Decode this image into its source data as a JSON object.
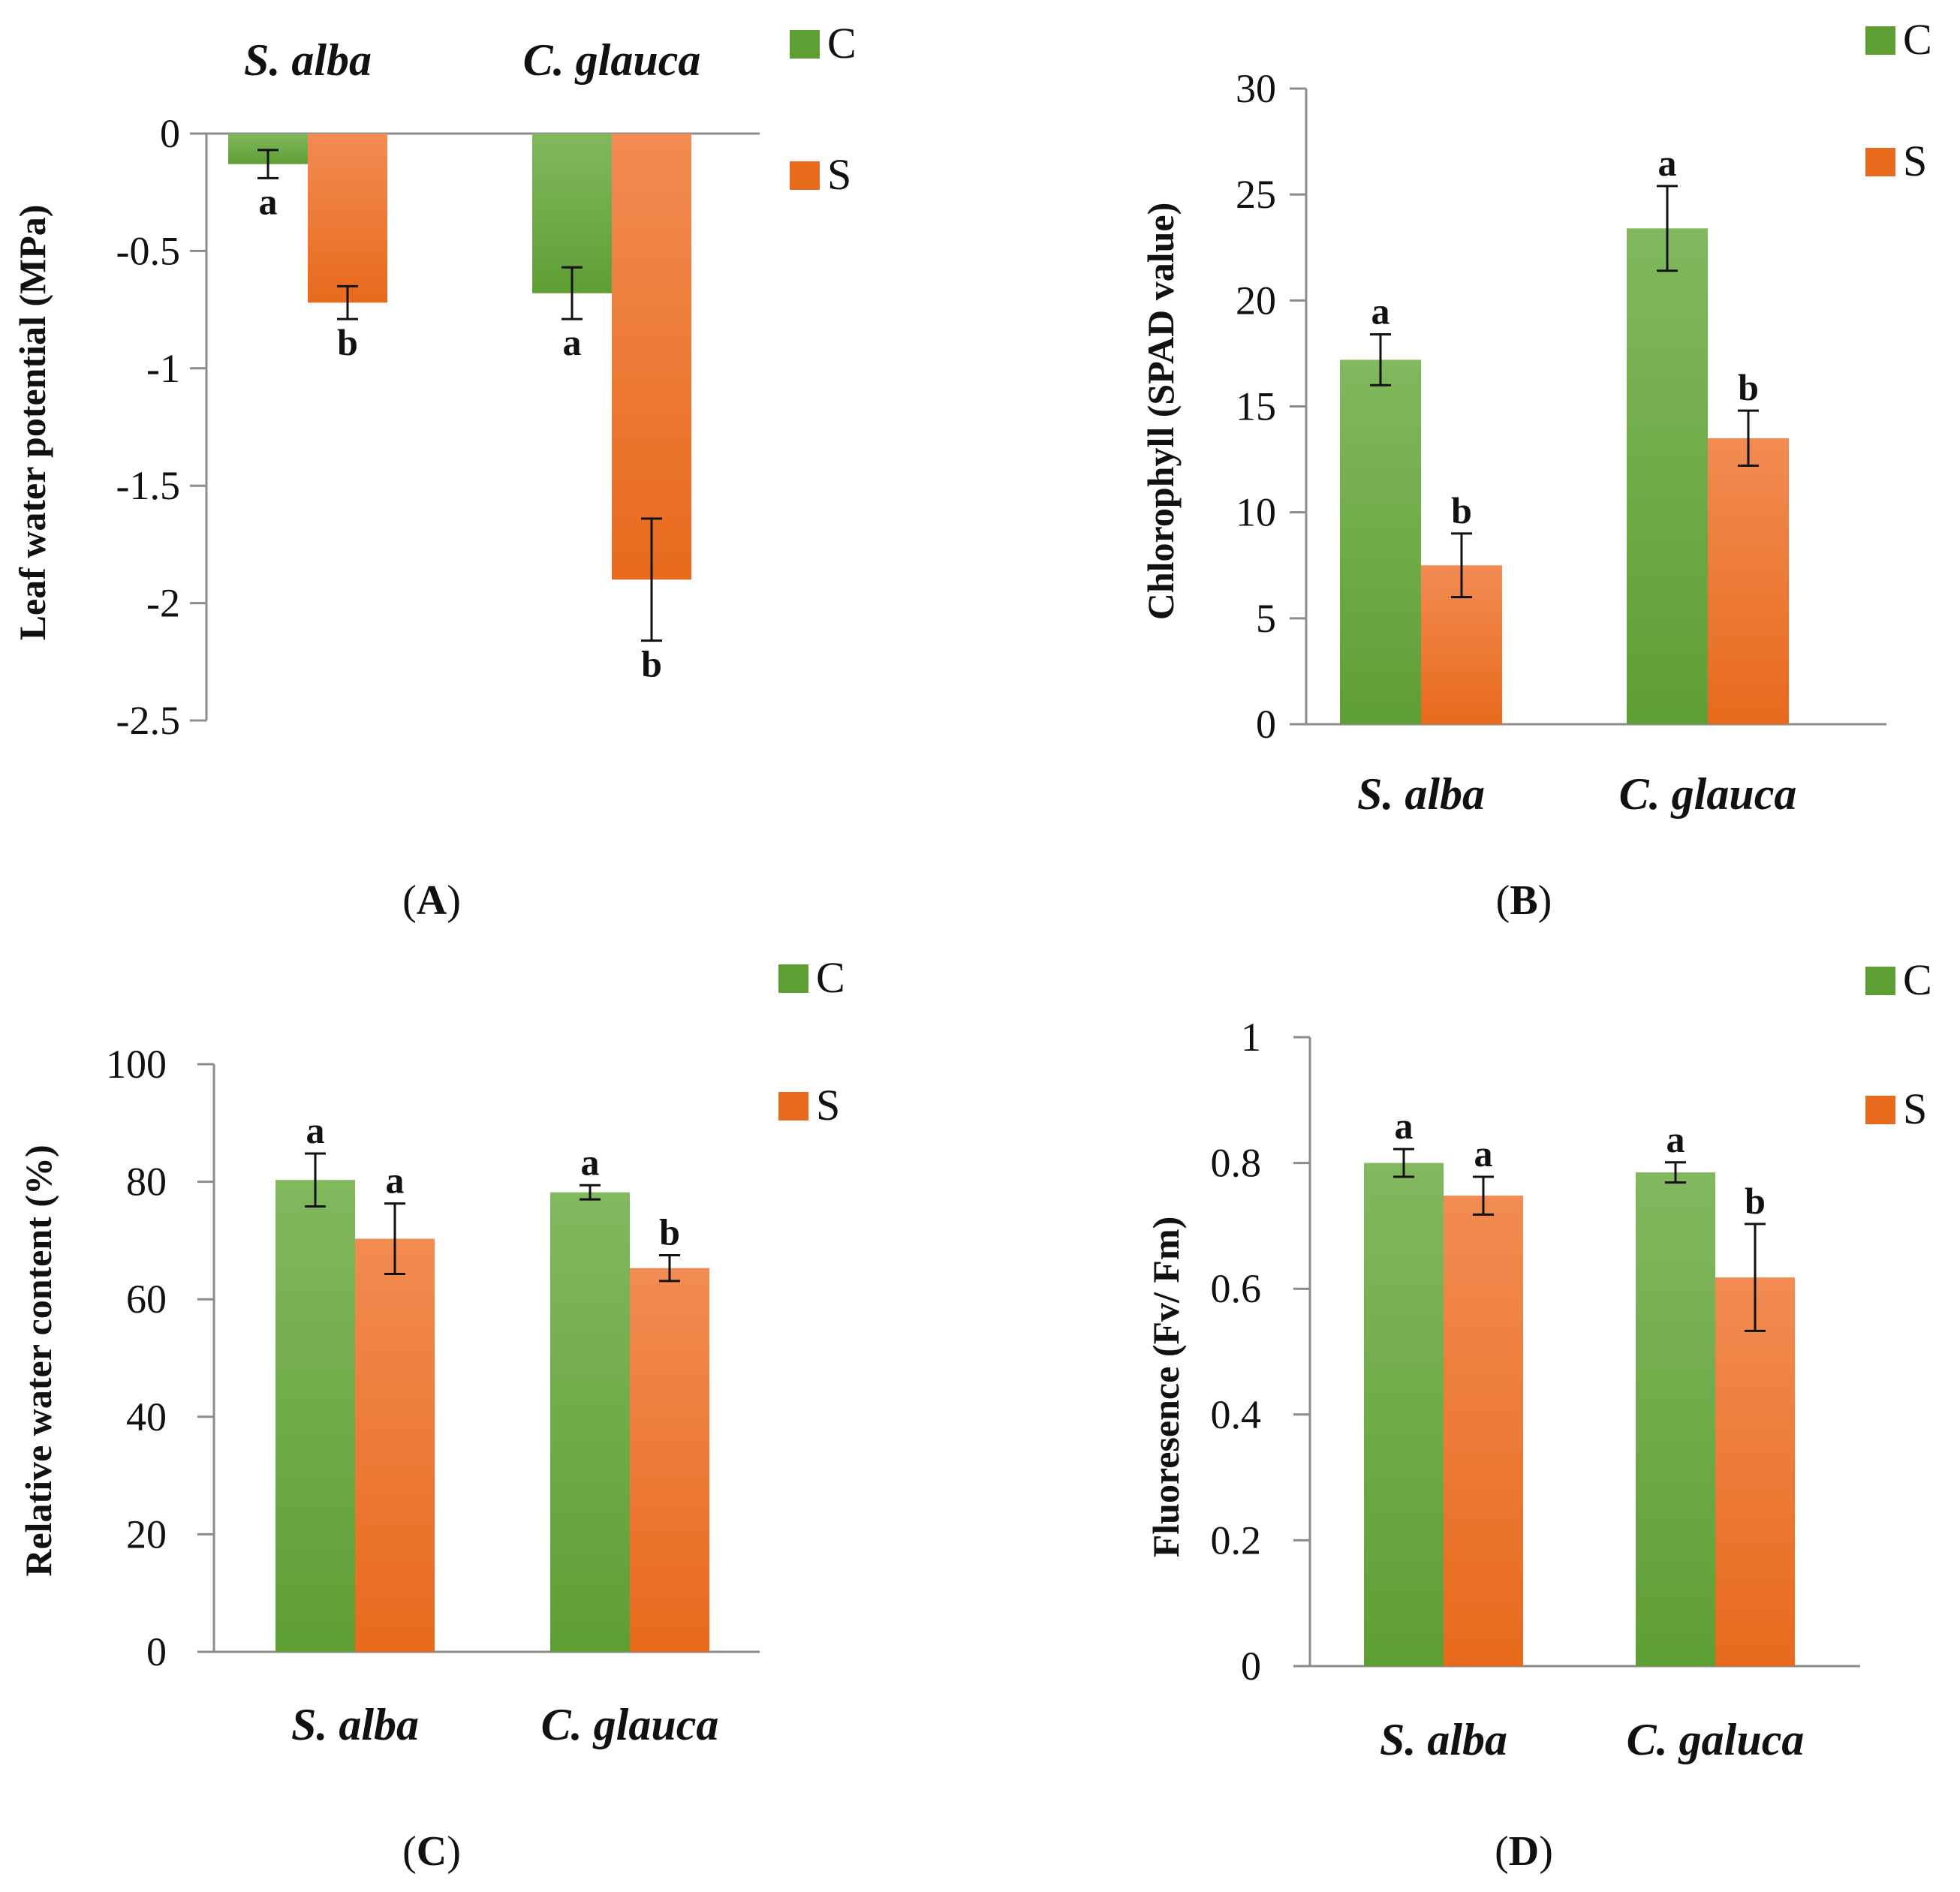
{
  "colors": {
    "control_top": "#82b85e",
    "control_bottom": "#5e9f34",
    "stress_top": "#f28c52",
    "stress_bottom": "#e86a1c",
    "axis": "#8c8c8c",
    "text": "#111111"
  },
  "chart_data": [
    {
      "panel": "A",
      "panel_label": "A",
      "type": "bar",
      "ylabel": "Leaf water potential (MPa)",
      "ylim": [
        -2.5,
        0
      ],
      "yticks": [
        0,
        -0.5,
        -1,
        -1.5,
        -2,
        -2.5
      ],
      "ytick_labels": [
        "0",
        "-0.5",
        "-1",
        "-1.5",
        "-2",
        "-2.5"
      ],
      "category_position": "top",
      "categories": [
        "S. alba",
        "C. glauca"
      ],
      "series": [
        {
          "name": "C",
          "values": [
            -0.13,
            -0.68
          ],
          "errors": [
            0.06,
            0.11
          ],
          "letters": [
            "a",
            "a"
          ]
        },
        {
          "name": "S",
          "values": [
            -0.72,
            -1.9
          ],
          "errors": [
            0.07,
            0.26
          ],
          "letters": [
            "b",
            "b"
          ]
        }
      ],
      "legend": [
        "C",
        "S"
      ],
      "legend_position": "top-right"
    },
    {
      "panel": "B",
      "panel_label": "B",
      "type": "bar",
      "ylabel": "Chlorophyll (SPAD value)",
      "ylim": [
        0,
        30
      ],
      "yticks": [
        0,
        5,
        10,
        15,
        20,
        25,
        30
      ],
      "ytick_labels": [
        "0",
        "5",
        "10",
        "15",
        "20",
        "25",
        "30"
      ],
      "category_position": "bottom",
      "categories": [
        "S. alba",
        "C. glauca"
      ],
      "series": [
        {
          "name": "C",
          "values": [
            17.2,
            23.4
          ],
          "errors": [
            1.2,
            2.0
          ],
          "letters": [
            "a",
            "a"
          ]
        },
        {
          "name": "S",
          "values": [
            7.5,
            13.5
          ],
          "errors": [
            1.5,
            1.3
          ],
          "letters": [
            "b",
            "b"
          ]
        }
      ],
      "legend": [
        "C",
        "S"
      ],
      "legend_position": "top-right"
    },
    {
      "panel": "C",
      "panel_label": "C",
      "type": "bar",
      "ylabel": "Relative water content (%)",
      "ylim": [
        0,
        100
      ],
      "yticks": [
        0,
        20,
        40,
        60,
        80,
        100
      ],
      "ytick_labels": [
        "0",
        "20",
        "40",
        "60",
        "80",
        "100"
      ],
      "category_position": "bottom",
      "categories": [
        "S. alba",
        "C. glauca"
      ],
      "series": [
        {
          "name": "C",
          "values": [
            80.3,
            78.2
          ],
          "errors": [
            4.5,
            1.2
          ],
          "letters": [
            "a",
            "a"
          ]
        },
        {
          "name": "S",
          "values": [
            70.3,
            65.3
          ],
          "errors": [
            6.0,
            2.2
          ],
          "letters": [
            "a",
            "b"
          ]
        }
      ],
      "legend": [
        "C",
        "S"
      ],
      "legend_position": "top-right"
    },
    {
      "panel": "D",
      "panel_label": "D",
      "type": "bar",
      "ylabel": "Fluoresence (Fv/ Fm)",
      "ylim": [
        0,
        1
      ],
      "yticks": [
        0,
        0.2,
        0.4,
        0.6,
        0.8,
        1
      ],
      "ytick_labels": [
        "0",
        "0.2",
        "0.4",
        "0.6",
        "0.8",
        "1"
      ],
      "category_position": "bottom",
      "categories": [
        "S. alba",
        "C. galuca"
      ],
      "series": [
        {
          "name": "C",
          "values": [
            0.8,
            0.785
          ],
          "errors": [
            0.022,
            0.016
          ],
          "letters": [
            "a",
            "a"
          ]
        },
        {
          "name": "S",
          "values": [
            0.748,
            0.618
          ],
          "errors": [
            0.03,
            0.085
          ],
          "letters": [
            "a",
            "b"
          ]
        }
      ],
      "legend": [
        "C",
        "S"
      ],
      "legend_position": "top-right"
    }
  ]
}
